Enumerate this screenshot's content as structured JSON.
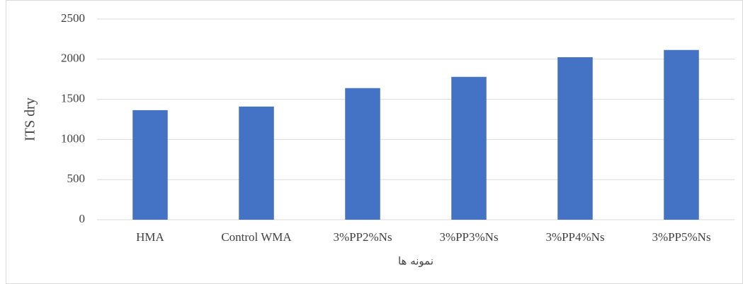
{
  "chart_data": {
    "type": "bar",
    "categories": [
      "HMA",
      "Control WMA",
      "3%PP2%Ns",
      "3%PP3%Ns",
      "3%PP4%Ns",
      "3%PP5%Ns"
    ],
    "values": [
      1365,
      1410,
      1640,
      1780,
      2025,
      2115
    ],
    "color": "#4472c4",
    "y_label": "ITS dry",
    "x_label": "نمونه ها",
    "ylim": [
      0,
      2500
    ],
    "yticks": [
      0,
      500,
      1000,
      1500,
      2000,
      2500
    ],
    "grid": true
  }
}
